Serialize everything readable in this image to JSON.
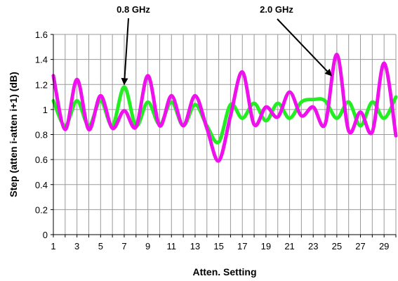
{
  "chart_data": {
    "type": "line",
    "title": "",
    "xlabel": "Atten. Setting",
    "ylabel": "Step (atten i-atten i+1) (dB)",
    "xlim": [
      1,
      30
    ],
    "ylim": [
      0,
      1.6
    ],
    "x_tick_values": [
      1,
      3,
      5,
      7,
      9,
      11,
      13,
      15,
      17,
      19,
      21,
      23,
      25,
      27,
      29
    ],
    "x_tick_labels": [
      "1",
      "3",
      "5",
      "7",
      "9",
      "11",
      "13",
      "15",
      "17",
      "19",
      "21",
      "23",
      "25",
      "27",
      "29"
    ],
    "y_tick_values": [
      0,
      0.2,
      0.4,
      0.6,
      0.8,
      1,
      1.2,
      1.4,
      1.6
    ],
    "y_tick_labels": [
      "0",
      "0.2",
      "0.4",
      "0.6",
      "0.8",
      "1",
      "1.2",
      "1.4",
      "1.6"
    ],
    "grid": true,
    "legend": "none",
    "x": [
      1,
      2,
      3,
      4,
      5,
      6,
      7,
      8,
      9,
      10,
      11,
      12,
      13,
      14,
      15,
      16,
      17,
      18,
      19,
      20,
      21,
      22,
      23,
      24,
      25,
      26,
      27,
      28,
      29,
      30
    ],
    "series": [
      {
        "name": "0.8 GHz",
        "color": "#22ee22",
        "values": [
          1.07,
          0.87,
          1.07,
          0.87,
          1.07,
          0.87,
          1.18,
          0.87,
          1.06,
          0.88,
          1.06,
          0.87,
          1.04,
          0.87,
          0.74,
          1.04,
          0.93,
          1.05,
          0.91,
          1.05,
          0.93,
          1.06,
          1.08,
          1.07,
          0.93,
          1.06,
          0.87,
          1.06,
          0.93,
          1.1
        ]
      },
      {
        "name": "2.0 GHz",
        "color": "#ee11ee",
        "values": [
          1.27,
          0.84,
          1.24,
          0.84,
          1.11,
          0.85,
          0.99,
          0.86,
          1.27,
          0.87,
          1.11,
          0.87,
          1.11,
          0.85,
          0.59,
          0.95,
          1.3,
          0.88,
          1.02,
          0.94,
          1.14,
          0.95,
          1.02,
          0.88,
          1.44,
          0.83,
          0.98,
          0.82,
          1.37,
          0.79
        ]
      }
    ],
    "annotations": [
      {
        "label": "0.8 GHz",
        "series": 0,
        "target_x": 7,
        "target_y": 1.2
      },
      {
        "label": "2.0 GHz",
        "series": 1,
        "target_x": 24.55,
        "target_y": 1.27
      }
    ]
  }
}
